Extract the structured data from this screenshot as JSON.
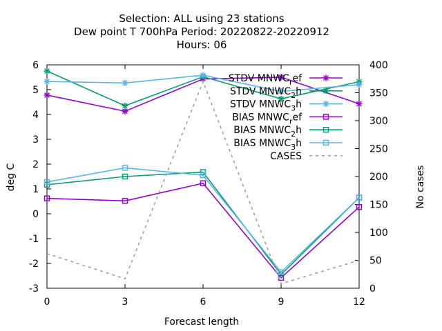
{
  "chart_data": {
    "type": "line",
    "title_lines": [
      "Selection: ALL using    23 stations",
      "Dew point T 700hPa   Period: 20220822-20220912",
      "Hours:  06"
    ],
    "xlabel": "Forecast length",
    "ylabel": "deg C",
    "y2label": "No cases",
    "x": [
      0,
      3,
      6,
      9,
      12
    ],
    "xlim": [
      0,
      12
    ],
    "ylim": [
      -3,
      6
    ],
    "y2lim": [
      0,
      400
    ],
    "xticks": [
      "0",
      "3",
      "6",
      "9",
      "12"
    ],
    "yticks": [
      "-3",
      "-2",
      "-1",
      "0",
      "1",
      "2",
      "3",
      "4",
      "5",
      "6"
    ],
    "y2ticks": [
      "0",
      "50",
      "100",
      "150",
      "200",
      "250",
      "300",
      "350",
      "400"
    ],
    "legend_position": "top-right",
    "series": [
      {
        "name": "STDV MNWC_ref",
        "label_main": "STDV MNWC",
        "label_sub": "r",
        "label_rest": "ef",
        "axis": "y",
        "color": "#9400d3",
        "marker": "star",
        "dash": false,
        "values": [
          4.78,
          4.13,
          5.43,
          5.5,
          4.43
        ]
      },
      {
        "name": "STDV MNWC_2h",
        "label_main": "STDV MNWC",
        "label_sub": "2",
        "label_rest": "h",
        "axis": "y",
        "color": "#009e73",
        "marker": "star",
        "dash": false,
        "values": [
          5.75,
          4.35,
          5.52,
          4.63,
          5.32
        ]
      },
      {
        "name": "STDV MNWC_3h",
        "label_main": "STDV MNWC",
        "label_sub": "3",
        "label_rest": "h",
        "axis": "y",
        "color": "#56b4e9",
        "marker": "star",
        "dash": false,
        "values": [
          5.33,
          5.27,
          5.58,
          4.93,
          5.2
        ]
      },
      {
        "name": "BIAS MNWC_ref",
        "label_main": "BIAS MNWC",
        "label_sub": "r",
        "label_rest": "ef",
        "axis": "y",
        "color": "#9400d3",
        "marker": "square",
        "dash": false,
        "values": [
          0.62,
          0.52,
          1.23,
          -2.58,
          0.27
        ]
      },
      {
        "name": "BIAS MNWC_2h",
        "label_main": "BIAS MNWC",
        "label_sub": "2",
        "label_rest": "h",
        "axis": "y",
        "color": "#009e73",
        "marker": "square",
        "dash": false,
        "values": [
          1.17,
          1.5,
          1.68,
          -2.45,
          0.65
        ]
      },
      {
        "name": "BIAS MNWC_3h",
        "label_main": "BIAS MNWC",
        "label_sub": "3",
        "label_rest": "h",
        "axis": "y",
        "color": "#56b4e9",
        "marker": "square",
        "dash": false,
        "values": [
          1.28,
          1.85,
          1.55,
          -2.35,
          0.65
        ]
      },
      {
        "name": "CASES",
        "label_main": "CASES",
        "label_sub": "",
        "label_rest": "",
        "axis": "y2",
        "color": "#999999",
        "marker": "none",
        "dash": true,
        "values": [
          62,
          17,
          370,
          8,
          50
        ]
      }
    ]
  }
}
